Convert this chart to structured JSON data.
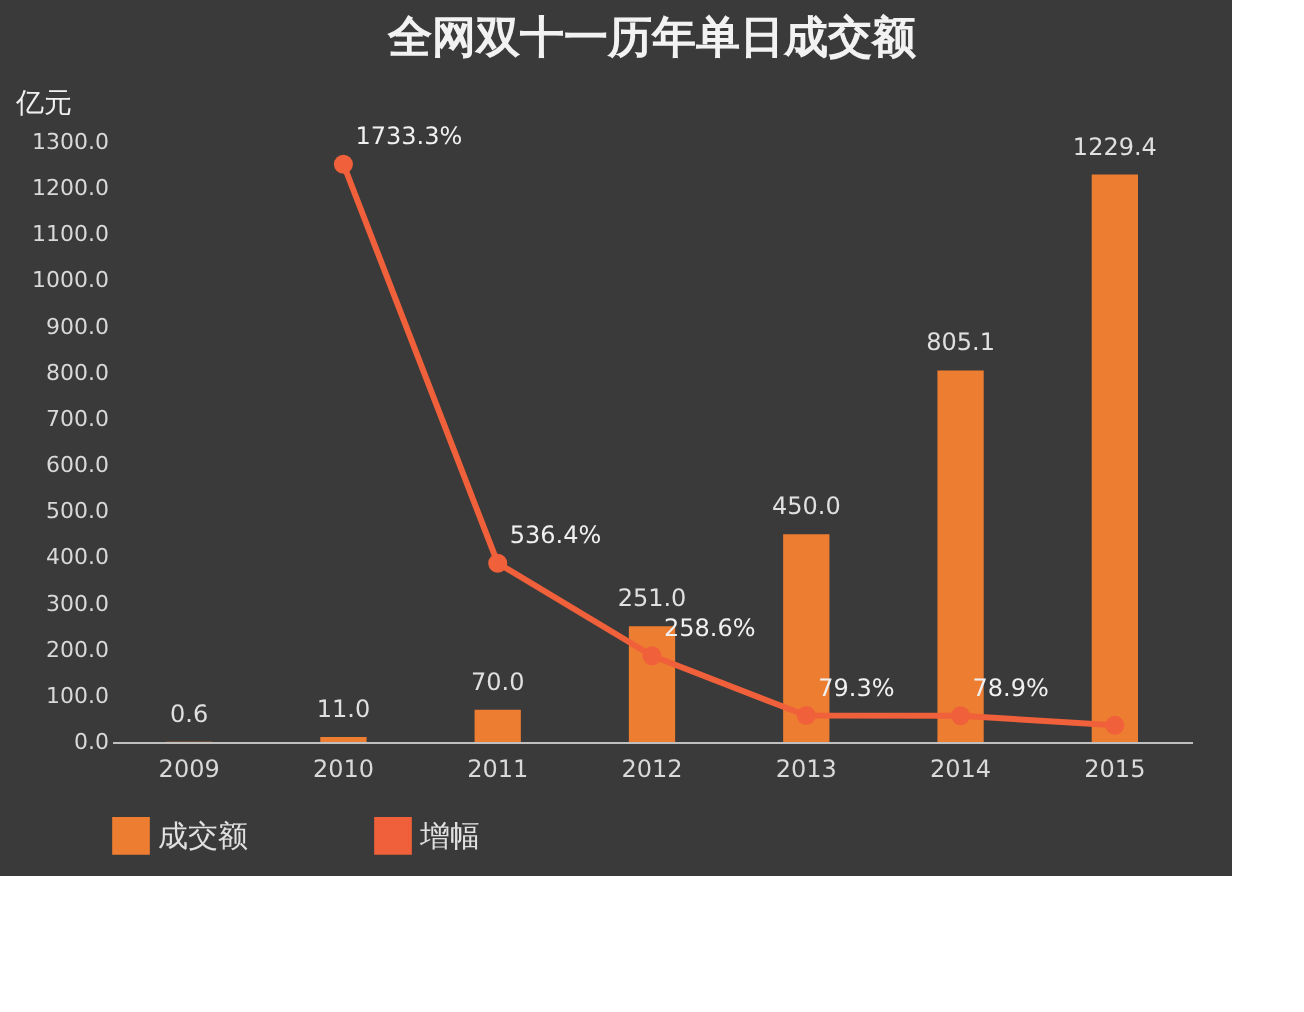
{
  "chart_data": {
    "type": "bar",
    "title": "全网双十一历年单日成交额",
    "ylabel": "亿元",
    "categories": [
      "2009",
      "2010",
      "2011",
      "2012",
      "2013",
      "2014",
      "2015"
    ],
    "series": [
      {
        "name": "成交额",
        "color": "#ed7d31",
        "values": [
          0.6,
          11.0,
          70.0,
          251.0,
          450.0,
          805.1,
          1229.4
        ],
        "value_labels": [
          "0.6",
          "11.0",
          "70.0",
          "251.0",
          "450.0",
          "805.1",
          "1229.4"
        ]
      },
      {
        "name": "增幅",
        "type": "line",
        "axis": "y2",
        "color": "#f0603a",
        "values": [
          null,
          1733.3,
          536.4,
          258.6,
          79.3,
          78.9,
          50
        ],
        "value_labels": [
          null,
          "1733.3%",
          "536.4%",
          "258.6%",
          "79.3%",
          "78.9%",
          null
        ]
      }
    ],
    "ylim": [
      0,
      1300
    ],
    "yticks": [
      {
        "value": 0,
        "label": "0.0"
      },
      {
        "value": 100,
        "label": "100.0"
      },
      {
        "value": 200,
        "label": "200.0"
      },
      {
        "value": 300,
        "label": "300.0"
      },
      {
        "value": 400,
        "label": "400.0"
      },
      {
        "value": 500,
        "label": "500.0"
      },
      {
        "value": 600,
        "label": "600.0"
      },
      {
        "value": 700,
        "label": "700.0"
      },
      {
        "value": 800,
        "label": "800.0"
      },
      {
        "value": 900,
        "label": "900.0"
      },
      {
        "value": 1000,
        "label": "1000.0"
      },
      {
        "value": 1100,
        "label": "1100.0"
      },
      {
        "value": 1200,
        "label": "1200.0"
      },
      {
        "value": 1300,
        "label": "1300.0"
      }
    ],
    "grid": false,
    "legend": "bottom",
    "marker": "circle",
    "line_style": "solid"
  }
}
